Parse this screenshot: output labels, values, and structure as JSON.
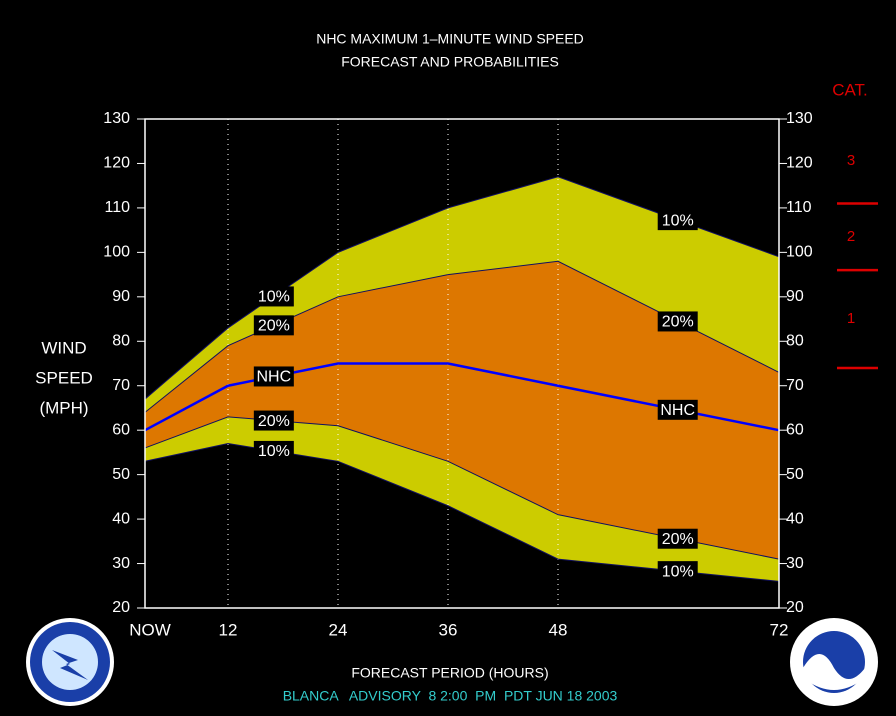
{
  "chart_data": {
    "type": "band-line",
    "title": [
      "NHC MAXIMUM 1–MINUTE WIND SPEED",
      "FORECAST AND PROBABILITIES"
    ],
    "ylabel": [
      "WIND",
      "SPEED",
      "(MPH)"
    ],
    "xlabel": "FORECAST PERIOD (HOURS)",
    "footer": "BLANCA   ADVISORY  8 2:00  PM  PDT JUN 18 2003",
    "x": [
      0,
      12,
      24,
      36,
      48,
      72
    ],
    "series": [
      {
        "name": "10%",
        "color": "#cccc00",
        "values": [
          67,
          83,
          100,
          110,
          117,
          99
        ]
      },
      {
        "name": "20%",
        "color": "#dd7700",
        "values": [
          64,
          79,
          90,
          95,
          98,
          73
        ]
      },
      {
        "name": "NHC",
        "color": "#0000ff",
        "values": [
          60,
          70,
          75,
          75,
          70,
          60
        ]
      },
      {
        "name": "20%",
        "color": "#dd7700",
        "values": [
          56,
          63,
          61,
          53,
          41,
          31
        ]
      },
      {
        "name": "10%",
        "color": "#cccc00",
        "values": [
          53,
          57,
          53,
          43,
          31,
          26
        ]
      }
    ],
    "xlim": [
      0,
      72
    ],
    "xticks": [
      {
        "value": 0,
        "label": "NOW"
      },
      12,
      24,
      36,
      48,
      72
    ],
    "ylim": [
      20,
      130
    ],
    "yticks": [
      20,
      30,
      40,
      50,
      60,
      70,
      80,
      90,
      100,
      110,
      120,
      130
    ],
    "grid": true,
    "category_title": "CAT.",
    "category_thresholds": [
      74,
      96,
      111
    ],
    "category_labels": [
      "1",
      "2",
      "3"
    ],
    "category_color": "#dd0000"
  }
}
